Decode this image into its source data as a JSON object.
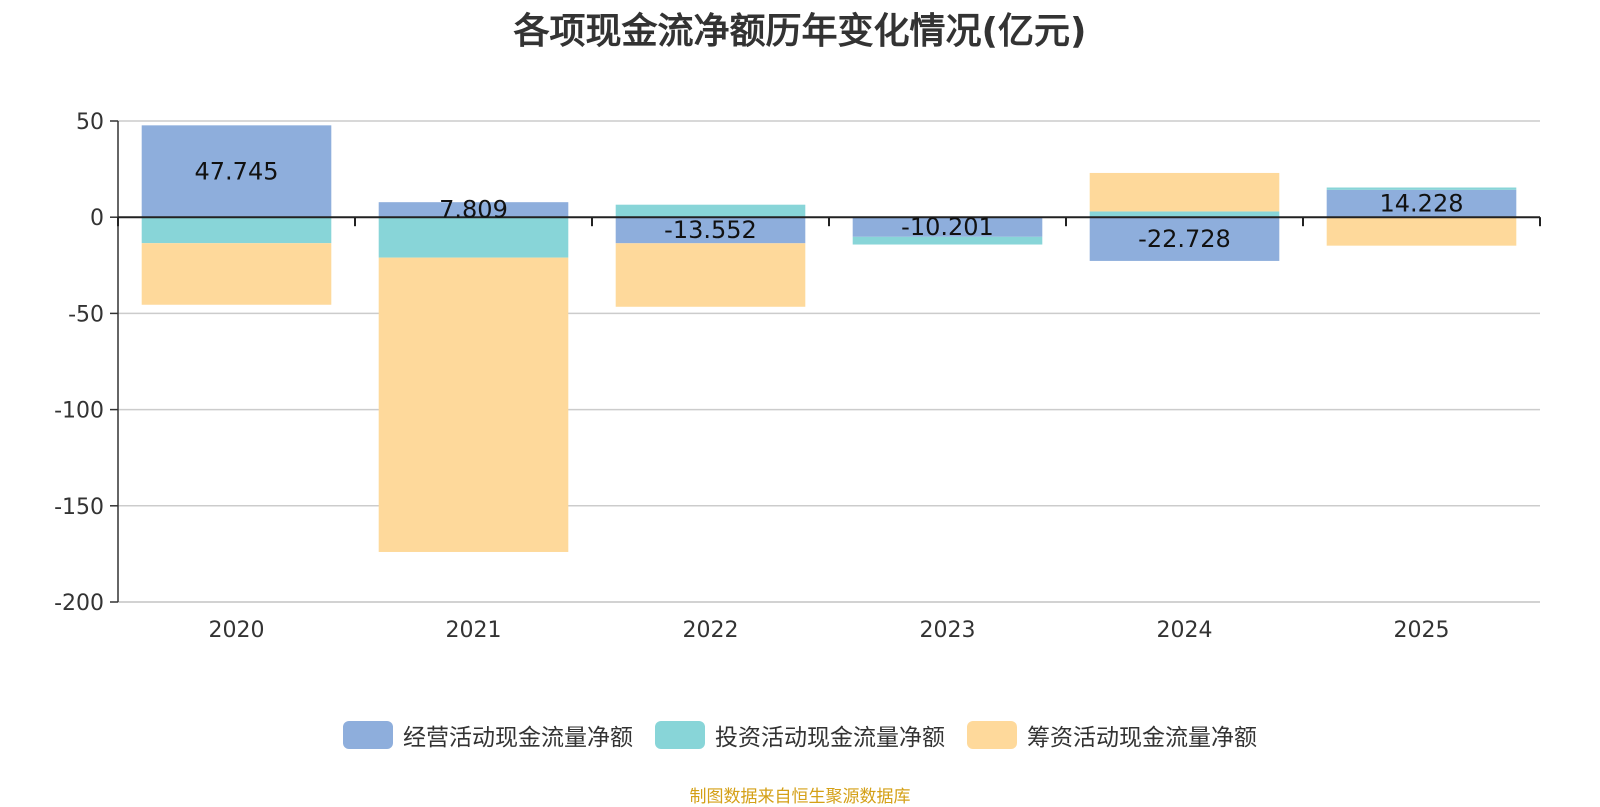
{
  "chart_data": {
    "type": "bar",
    "stacked": true,
    "title": "各项现金流净额历年变化情况(亿元)",
    "categories": [
      "2020",
      "2021",
      "2022",
      "2023",
      "2024",
      "2025"
    ],
    "series": [
      {
        "name": "经营活动现金流量净额",
        "color": "#8eaedc",
        "values": [
          47.745,
          7.809,
          -13.552,
          -10.201,
          -22.728,
          14.228
        ]
      },
      {
        "name": "投资活动现金流量净额",
        "color": "#88d5d8",
        "values": [
          -13.5,
          -21.0,
          6.5,
          -4.0,
          3.0,
          1.2
        ]
      },
      {
        "name": "筹资活动现金流量净额",
        "color": "#fed99b",
        "values": [
          -32.0,
          -153.0,
          -33.0,
          0.0,
          20.0,
          -14.8
        ]
      }
    ],
    "data_labels_series": 0,
    "ylim": [
      -200,
      50
    ],
    "yticks": [
      50,
      0,
      -50,
      -100,
      -150,
      -200
    ],
    "grid": true,
    "legend_position": "bottom"
  },
  "source_note": "制图数据来自恒生聚源数据库"
}
